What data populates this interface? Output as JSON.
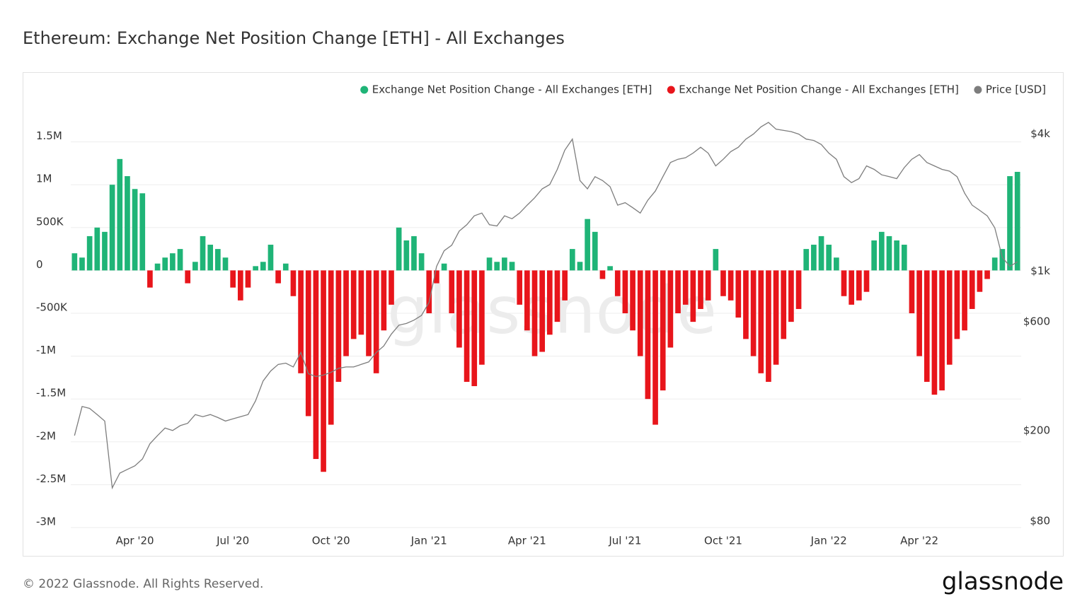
{
  "title": "Ethereum: Exchange Net Position Change [ETH] - All Exchanges",
  "footer": "© 2022 Glassnode. All Rights Reserved.",
  "logo": "glassnode",
  "watermark": "glassnode",
  "chart_data": {
    "type": "bar",
    "categories": [
      null,
      null,
      null,
      null,
      null,
      null,
      null,
      null,
      "Apr '20",
      null,
      null,
      null,
      null,
      null,
      null,
      null,
      null,
      null,
      null,
      null,
      null,
      "Jul '20",
      null,
      null,
      null,
      null,
      null,
      null,
      null,
      null,
      null,
      null,
      null,
      null,
      "Oct '20",
      null,
      null,
      null,
      null,
      null,
      null,
      null,
      null,
      null,
      null,
      null,
      null,
      "Jan '21",
      null,
      null,
      null,
      null,
      null,
      null,
      null,
      null,
      null,
      null,
      null,
      null,
      "Apr '21",
      null,
      null,
      null,
      null,
      null,
      null,
      null,
      null,
      null,
      null,
      null,
      null,
      "Jul '21",
      null,
      null,
      null,
      null,
      null,
      null,
      null,
      null,
      null,
      null,
      null,
      null,
      "Oct '21",
      null,
      null,
      null,
      null,
      null,
      null,
      null,
      null,
      null,
      null,
      null,
      null,
      null,
      "Jan '22",
      null,
      null,
      null,
      null,
      null,
      null,
      null,
      null,
      null,
      null,
      null,
      "Apr '22",
      null,
      null,
      null,
      null,
      null,
      null,
      null,
      null,
      null,
      null,
      null,
      null,
      null
    ],
    "series": [
      {
        "name": "Exchange Net Position Change - All Exchanges [ETH]",
        "color": "#1fb477",
        "values": [
          200000,
          150000,
          400000,
          500000,
          450000,
          1000000,
          1300000,
          1100000,
          950000,
          900000,
          null,
          80000,
          150000,
          200000,
          250000,
          null,
          100000,
          400000,
          300000,
          250000,
          150000,
          null,
          null,
          null,
          50000,
          100000,
          300000,
          null,
          80000,
          null,
          null,
          null,
          null,
          null,
          null,
          null,
          null,
          null,
          null,
          null,
          null,
          null,
          null,
          500000,
          350000,
          400000,
          200000,
          null,
          null,
          80000,
          null,
          null,
          null,
          null,
          null,
          150000,
          100000,
          150000,
          100000,
          null,
          null,
          null,
          null,
          null,
          null,
          null,
          250000,
          100000,
          600000,
          450000,
          null,
          50000,
          null,
          null,
          null,
          null,
          null,
          null,
          null,
          null,
          null,
          null,
          null,
          null,
          null,
          250000,
          null,
          null,
          null,
          null,
          null,
          null,
          null,
          null,
          null,
          null,
          null,
          250000,
          300000,
          400000,
          300000,
          150000,
          null,
          null,
          null,
          null,
          350000,
          450000,
          400000,
          350000,
          300000,
          null,
          null,
          null,
          null,
          null,
          null,
          null,
          null,
          null,
          null,
          null,
          150000,
          250000,
          1100000,
          1150000
        ]
      },
      {
        "name": "Exchange Net Position Change - All Exchanges [ETH]",
        "color": "#e8151b",
        "values": [
          null,
          null,
          null,
          null,
          null,
          null,
          null,
          null,
          null,
          null,
          -200000,
          null,
          null,
          null,
          null,
          -150000,
          null,
          null,
          null,
          null,
          null,
          -200000,
          -350000,
          -200000,
          null,
          null,
          null,
          -150000,
          null,
          -300000,
          -1200000,
          -1700000,
          -2200000,
          -2350000,
          -1800000,
          -1300000,
          -1000000,
          -800000,
          -750000,
          -1000000,
          -1200000,
          -700000,
          -400000,
          null,
          null,
          null,
          null,
          -500000,
          -150000,
          null,
          -500000,
          -900000,
          -1300000,
          -1350000,
          -1100000,
          null,
          null,
          null,
          null,
          -400000,
          -700000,
          -1000000,
          -950000,
          -750000,
          -600000,
          -350000,
          null,
          null,
          null,
          null,
          -100000,
          null,
          -300000,
          -500000,
          -700000,
          -1000000,
          -1500000,
          -1800000,
          -1400000,
          -900000,
          -500000,
          -400000,
          -600000,
          -450000,
          -350000,
          null,
          -300000,
          -350000,
          -550000,
          -800000,
          -1000000,
          -1200000,
          -1300000,
          -1100000,
          -800000,
          -600000,
          -450000,
          null,
          null,
          null,
          null,
          null,
          -300000,
          -400000,
          -350000,
          -250000,
          null,
          null,
          null,
          null,
          null,
          -500000,
          -1000000,
          -1300000,
          -1450000,
          -1400000,
          -1100000,
          -800000,
          -700000,
          -450000,
          -250000,
          -100000,
          null,
          null,
          null,
          null
        ]
      },
      {
        "name": "Price [USD]",
        "color": "#7d7d7d",
        "type": "line",
        "axis": "y2",
        "values": [
          190,
          255,
          250,
          235,
          220,
          112,
          130,
          135,
          140,
          150,
          175,
          190,
          205,
          200,
          210,
          215,
          235,
          230,
          235,
          228,
          220,
          225,
          230,
          235,
          270,
          330,
          365,
          390,
          395,
          380,
          440,
          355,
          345,
          350,
          360,
          375,
          380,
          380,
          390,
          400,
          440,
          470,
          530,
          580,
          590,
          610,
          640,
          730,
          1050,
          1230,
          1300,
          1500,
          1600,
          1750,
          1800,
          1600,
          1580,
          1750,
          1700,
          1800,
          1950,
          2100,
          2300,
          2400,
          2800,
          3400,
          3800,
          2500,
          2300,
          2600,
          2500,
          2350,
          1950,
          2000,
          1900,
          1800,
          2050,
          2250,
          2600,
          3000,
          3100,
          3150,
          3300,
          3500,
          3300,
          2900,
          3100,
          3350,
          3500,
          3800,
          4000,
          4300,
          4500,
          4200,
          4150,
          4100,
          4000,
          3800,
          3750,
          3600,
          3300,
          3100,
          2600,
          2450,
          2550,
          2900,
          2800,
          2650,
          2600,
          2550,
          2850,
          3100,
          3250,
          3000,
          2900,
          2800,
          2750,
          2600,
          2200,
          1950,
          1850,
          1750,
          1550,
          1150,
          1050,
          1100
        ]
      }
    ],
    "ylim": [
      -3000000,
      2000000
    ],
    "yticks": [
      {
        "value": -3000000,
        "label": "-3M"
      },
      {
        "value": -2500000,
        "label": "-2.5M"
      },
      {
        "value": -2000000,
        "label": "-2M"
      },
      {
        "value": -1500000,
        "label": "-1.5M"
      },
      {
        "value": -1000000,
        "label": "-1M"
      },
      {
        "value": -500000,
        "label": "-500K"
      },
      0,
      {
        "value": 500000,
        "label": "500K"
      },
      {
        "value": 1000000,
        "label": "1M"
      },
      {
        "value": 1500000,
        "label": "1.5M"
      }
    ],
    "y2lim": [
      75,
      5700
    ],
    "y2scale": "log",
    "y2ticks": [
      {
        "value": 80,
        "label": "$80"
      },
      {
        "value": 200,
        "label": "$200"
      },
      {
        "value": 600,
        "label": "$600"
      },
      {
        "value": 1000,
        "label": "$1k"
      },
      {
        "value": 4000,
        "label": "$4k"
      }
    ],
    "grid": true,
    "legend": "top-right"
  }
}
